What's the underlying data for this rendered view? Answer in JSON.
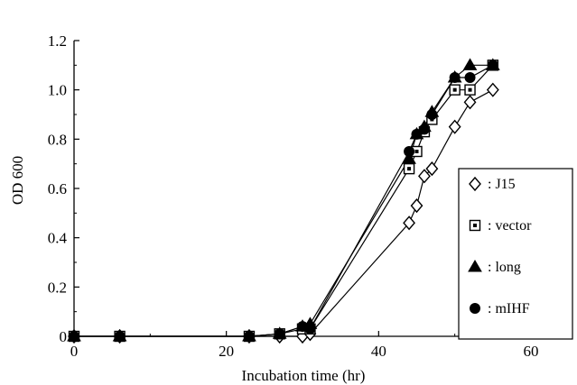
{
  "chart_data": {
    "type": "line",
    "title": "",
    "xlabel": "Incubation time (hr)",
    "ylabel": "OD 600",
    "xlim": [
      0,
      60
    ],
    "ylim": [
      0,
      1.2
    ],
    "xticks": [
      0,
      20,
      40,
      60
    ],
    "xtick_labels": [
      "0",
      "20",
      "40",
      "60"
    ],
    "yticks": [
      0,
      0.2,
      0.4,
      0.6,
      0.8,
      1.0,
      1.2
    ],
    "ytick_labels": [
      "0",
      "0.2",
      "0.4",
      "0.6",
      "0.8",
      "1.0",
      "1.2"
    ],
    "grid": false,
    "legend_position": "right",
    "series": [
      {
        "name": ": J15",
        "marker": "diamond-open",
        "color": "#000000",
        "points": [
          [
            0,
            0
          ],
          [
            6,
            0
          ],
          [
            23,
            0
          ],
          [
            27,
            0
          ],
          [
            30,
            0.0
          ],
          [
            31,
            0.01
          ],
          [
            44,
            0.46
          ],
          [
            45,
            0.53
          ],
          [
            46,
            0.65
          ],
          [
            47,
            0.68
          ],
          [
            50,
            0.85
          ],
          [
            52,
            0.95
          ],
          [
            55,
            1.0
          ]
        ]
      },
      {
        "name": ": vector",
        "marker": "square-open-dot",
        "color": "#000000",
        "points": [
          [
            0,
            0
          ],
          [
            6,
            0
          ],
          [
            23,
            0
          ],
          [
            27,
            0.01
          ],
          [
            30,
            0.03
          ],
          [
            31,
            0.03
          ],
          [
            44,
            0.68
          ],
          [
            45,
            0.75
          ],
          [
            46,
            0.83
          ],
          [
            47,
            0.88
          ],
          [
            50,
            1.0
          ],
          [
            52,
            1.0
          ],
          [
            55,
            1.1
          ]
        ]
      },
      {
        "name": ": long",
        "marker": "triangle-filled",
        "color": "#000000",
        "points": [
          [
            0,
            0
          ],
          [
            6,
            0
          ],
          [
            23,
            0
          ],
          [
            27,
            0.01
          ],
          [
            30,
            0.04
          ],
          [
            31,
            0.05
          ],
          [
            44,
            0.72
          ],
          [
            45,
            0.82
          ],
          [
            46,
            0.85
          ],
          [
            47,
            0.91
          ],
          [
            50,
            1.05
          ],
          [
            52,
            1.1
          ],
          [
            55,
            1.1
          ]
        ]
      },
      {
        "name": ": mIHF",
        "marker": "circle-filled",
        "color": "#000000",
        "points": [
          [
            0,
            0
          ],
          [
            6,
            0
          ],
          [
            23,
            0
          ],
          [
            27,
            0.01
          ],
          [
            30,
            0.04
          ],
          [
            31,
            0.03
          ],
          [
            44,
            0.75
          ],
          [
            45,
            0.82
          ],
          [
            46,
            0.84
          ],
          [
            47,
            0.9
          ],
          [
            50,
            1.05
          ],
          [
            52,
            1.05
          ],
          [
            55,
            1.1
          ]
        ]
      }
    ]
  }
}
